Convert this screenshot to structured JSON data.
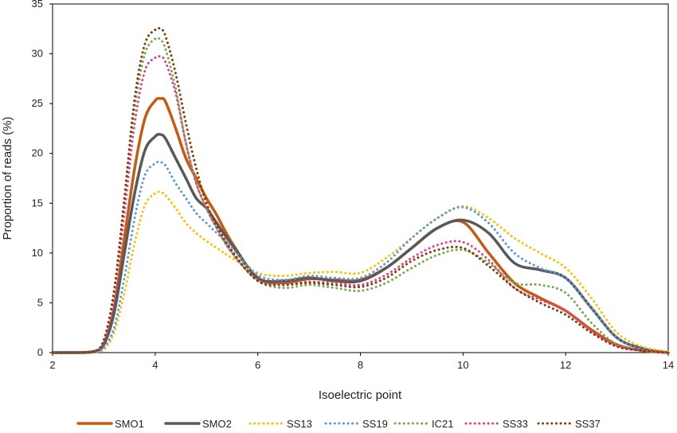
{
  "chart_data": {
    "type": "line",
    "title": "",
    "xlabel": "Isoelectric point",
    "ylabel": "Proportion of reads (%)",
    "xlim": [
      2,
      14
    ],
    "ylim": [
      0,
      35
    ],
    "xticks": [
      2,
      4,
      6,
      8,
      10,
      12,
      14
    ],
    "yticks": [
      0,
      5,
      10,
      15,
      20,
      25,
      30,
      35
    ],
    "grid": false,
    "legend": "bottom",
    "x": [
      2,
      2.5,
      2.8,
      3,
      3.2,
      3.4,
      3.6,
      3.8,
      4,
      4.1,
      4.2,
      4.4,
      4.6,
      4.8,
      5,
      5.2,
      5.5,
      6,
      6.5,
      7,
      7.5,
      8,
      8.5,
      9,
      9.5,
      10,
      10.5,
      11,
      11.5,
      12,
      12.5,
      13,
      13.5,
      14
    ],
    "series": [
      {
        "name": "SMO1",
        "style": "solid",
        "color": "#C55A11",
        "values": [
          0,
          0,
          0.1,
          0.9,
          4.5,
          11.5,
          18.5,
          23.5,
          25.3,
          25.5,
          25.2,
          22.5,
          19.5,
          17.5,
          15.5,
          13.8,
          11,
          7.5,
          7,
          7.4,
          7.3,
          7.3,
          8.5,
          10.5,
          12.5,
          13.1,
          10,
          7,
          5.5,
          4.2,
          2.3,
          0.8,
          0.2,
          0
        ]
      },
      {
        "name": "SMO2",
        "style": "solid",
        "color": "#595959",
        "values": [
          0,
          0,
          0.1,
          0.8,
          4,
          10,
          16,
          20.3,
          21.7,
          21.9,
          21.5,
          19.5,
          17.5,
          15.5,
          14.5,
          13,
          10.8,
          7.5,
          7.2,
          7.5,
          7.2,
          7.2,
          8.5,
          10.5,
          12.5,
          13.3,
          12,
          9,
          8.3,
          7.5,
          4.5,
          1.5,
          0.4,
          0
        ]
      },
      {
        "name": "SS13",
        "style": "dotted",
        "color": "#FFC000",
        "values": [
          0,
          0,
          0,
          0.3,
          2,
          6,
          11,
          14.8,
          16,
          16.1,
          15.8,
          14.5,
          13,
          12,
          11.2,
          10.5,
          9.5,
          8,
          7.7,
          8,
          8.1,
          8,
          9.5,
          11.5,
          13.5,
          14.7,
          13.5,
          11.5,
          10,
          8.5,
          5.5,
          2,
          0.6,
          0.1
        ]
      },
      {
        "name": "SS19",
        "style": "dotted",
        "color": "#5B9BD5",
        "values": [
          0,
          0,
          0,
          0.5,
          2.5,
          7.5,
          13.5,
          17.8,
          19,
          19.1,
          18.8,
          17,
          15.5,
          14,
          13,
          12,
          10.5,
          7.8,
          7.3,
          7.7,
          7.5,
          7.5,
          9,
          11.5,
          13.5,
          14.6,
          13,
          10,
          8.5,
          7.5,
          4.5,
          1.5,
          0.3,
          0
        ]
      },
      {
        "name": "IC21",
        "style": "dotted",
        "color": "#70AD47",
        "values": [
          0,
          0,
          0.1,
          1.2,
          6,
          15,
          24.5,
          30,
          31.5,
          31.4,
          30.5,
          26.5,
          21,
          17,
          14.5,
          12.5,
          10,
          7.2,
          6.5,
          6.8,
          6.5,
          6.2,
          7,
          8.5,
          9.8,
          10.3,
          9,
          7,
          6.8,
          6,
          3,
          0.8,
          0.2,
          0
        ]
      },
      {
        "name": "SS33",
        "style": "dotted",
        "color": "#E83E8C",
        "values": [
          0,
          0,
          0.1,
          1.1,
          5.5,
          14,
          23,
          28.3,
          29.6,
          29.7,
          29.2,
          26,
          21,
          17,
          14.5,
          12.5,
          10,
          7.3,
          6.9,
          7.1,
          7,
          6.8,
          7.8,
          9.5,
          10.8,
          11.1,
          9.3,
          6.5,
          5.3,
          4.2,
          2.2,
          0.7,
          0.2,
          0
        ]
      },
      {
        "name": "SS37",
        "style": "dotted",
        "color": "#843C0C",
        "values": [
          0,
          0,
          0.1,
          1.3,
          6.3,
          15.5,
          25.5,
          31,
          32.4,
          32.5,
          31.8,
          28,
          23,
          18.5,
          15,
          12.8,
          10.2,
          7.2,
          6.8,
          7,
          6.8,
          6.6,
          7.5,
          9.2,
          10.3,
          10.5,
          8.7,
          6.5,
          5,
          3.8,
          2,
          0.6,
          0.2,
          0
        ]
      }
    ]
  }
}
